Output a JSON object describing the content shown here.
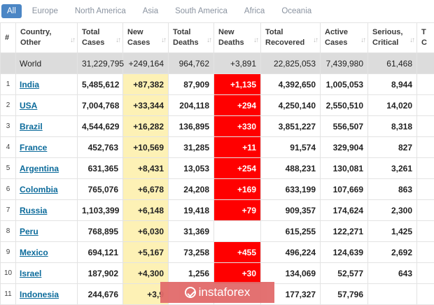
{
  "tabs": [
    {
      "label": "All",
      "active": true
    },
    {
      "label": "Europe",
      "active": false
    },
    {
      "label": "North America",
      "active": false
    },
    {
      "label": "Asia",
      "active": false
    },
    {
      "label": "South America",
      "active": false
    },
    {
      "label": "Africa",
      "active": false
    },
    {
      "label": "Oceania",
      "active": false
    }
  ],
  "headers": [
    {
      "key": "num",
      "line1": "#",
      "line2": ""
    },
    {
      "key": "country",
      "line1": "Country,",
      "line2": "Other"
    },
    {
      "key": "total_cases",
      "line1": "Total",
      "line2": "Cases"
    },
    {
      "key": "new_cases",
      "line1": "New",
      "line2": "Cases"
    },
    {
      "key": "total_deaths",
      "line1": "Total",
      "line2": "Deaths"
    },
    {
      "key": "new_deaths",
      "line1": "New",
      "line2": "Deaths"
    },
    {
      "key": "total_recovered",
      "line1": "Total",
      "line2": "Recovered"
    },
    {
      "key": "active_cases",
      "line1": "Active",
      "line2": "Cases"
    },
    {
      "key": "serious",
      "line1": "Serious,",
      "line2": "Critical"
    },
    {
      "key": "extra",
      "line1": "T",
      "line2": "C"
    }
  ],
  "world": {
    "num": "",
    "country": "World",
    "total_cases": "31,229,795",
    "new_cases": "+249,164",
    "total_deaths": "964,762",
    "new_deaths": "+3,891",
    "total_recovered": "22,825,053",
    "active_cases": "7,439,980",
    "serious": "61,468",
    "extra": ""
  },
  "rows": [
    {
      "num": "1",
      "country": "India",
      "total_cases": "5,485,612",
      "new_cases": "+87,382",
      "total_deaths": "87,909",
      "new_deaths": "+1,135",
      "total_recovered": "4,392,650",
      "active_cases": "1,005,053",
      "serious": "8,944",
      "extra": ""
    },
    {
      "num": "2",
      "country": "USA",
      "total_cases": "7,004,768",
      "new_cases": "+33,344",
      "total_deaths": "204,118",
      "new_deaths": "+294",
      "total_recovered": "4,250,140",
      "active_cases": "2,550,510",
      "serious": "14,020",
      "extra": ""
    },
    {
      "num": "3",
      "country": "Brazil",
      "total_cases": "4,544,629",
      "new_cases": "+16,282",
      "total_deaths": "136,895",
      "new_deaths": "+330",
      "total_recovered": "3,851,227",
      "active_cases": "556,507",
      "serious": "8,318",
      "extra": ""
    },
    {
      "num": "4",
      "country": "France",
      "total_cases": "452,763",
      "new_cases": "+10,569",
      "total_deaths": "31,285",
      "new_deaths": "+11",
      "total_recovered": "91,574",
      "active_cases": "329,904",
      "serious": "827",
      "extra": ""
    },
    {
      "num": "5",
      "country": "Argentina",
      "total_cases": "631,365",
      "new_cases": "+8,431",
      "total_deaths": "13,053",
      "new_deaths": "+254",
      "total_recovered": "488,231",
      "active_cases": "130,081",
      "serious": "3,261",
      "extra": ""
    },
    {
      "num": "6",
      "country": "Colombia",
      "total_cases": "765,076",
      "new_cases": "+6,678",
      "total_deaths": "24,208",
      "new_deaths": "+169",
      "total_recovered": "633,199",
      "active_cases": "107,669",
      "serious": "863",
      "extra": ""
    },
    {
      "num": "7",
      "country": "Russia",
      "total_cases": "1,103,399",
      "new_cases": "+6,148",
      "total_deaths": "19,418",
      "new_deaths": "+79",
      "total_recovered": "909,357",
      "active_cases": "174,624",
      "serious": "2,300",
      "extra": ""
    },
    {
      "num": "8",
      "country": "Peru",
      "total_cases": "768,895",
      "new_cases": "+6,030",
      "total_deaths": "31,369",
      "new_deaths": "",
      "total_recovered": "615,255",
      "active_cases": "122,271",
      "serious": "1,425",
      "extra": ""
    },
    {
      "num": "9",
      "country": "Mexico",
      "total_cases": "694,121",
      "new_cases": "+5,167",
      "total_deaths": "73,258",
      "new_deaths": "+455",
      "total_recovered": "496,224",
      "active_cases": "124,639",
      "serious": "2,692",
      "extra": ""
    },
    {
      "num": "10",
      "country": "Israel",
      "total_cases": "187,902",
      "new_cases": "+4,300",
      "total_deaths": "1,256",
      "new_deaths": "+30",
      "total_recovered": "134,069",
      "active_cases": "52,577",
      "serious": "643",
      "extra": ""
    },
    {
      "num": "11",
      "country": "Indonesia",
      "total_cases": "244,676",
      "new_cases": "+3,9",
      "total_deaths": "",
      "new_deaths": "",
      "total_recovered": "177,327",
      "active_cases": "57,796",
      "serious": "",
      "extra": ""
    }
  ],
  "watermark": {
    "text": "instaforex"
  },
  "colors": {
    "tab_active": "#4b86c5",
    "new_cases_bg": "#fdf1b5",
    "new_deaths_bg": "#ff0000",
    "world_bg": "#dcdcdc",
    "link": "#0c6b9b"
  }
}
